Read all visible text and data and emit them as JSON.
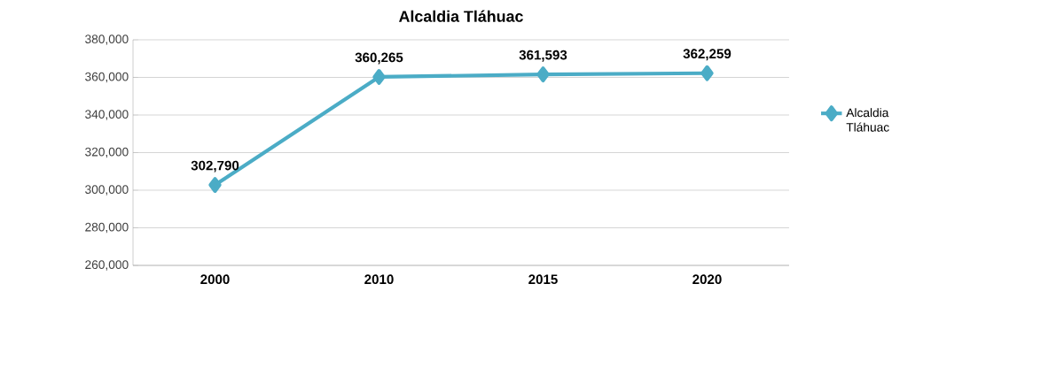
{
  "chart_data": {
    "type": "line",
    "title": "Alcaldia Tláhuac",
    "categories": [
      "2000",
      "2010",
      "2015",
      "2020"
    ],
    "series": [
      {
        "name": "Alcaldia Tláhuac",
        "color": "#4bacc6",
        "values": [
          302790,
          360265,
          361593,
          362259
        ],
        "value_labels": [
          "302,790",
          "360,265",
          "361,593",
          "362,259"
        ]
      }
    ],
    "ylim": [
      260000,
      380000
    ],
    "yticks": [
      {
        "value": 260000,
        "label": "260,000"
      },
      {
        "value": 280000,
        "label": "280,000"
      },
      {
        "value": 300000,
        "label": "300,000"
      },
      {
        "value": 320000,
        "label": "320,000"
      },
      {
        "value": 340000,
        "label": "340,000"
      },
      {
        "value": 360000,
        "label": "360,000"
      },
      {
        "value": 380000,
        "label": "380,000"
      }
    ],
    "grid": "y",
    "legend": "right",
    "marker": "diamond",
    "line_style": "solid"
  }
}
